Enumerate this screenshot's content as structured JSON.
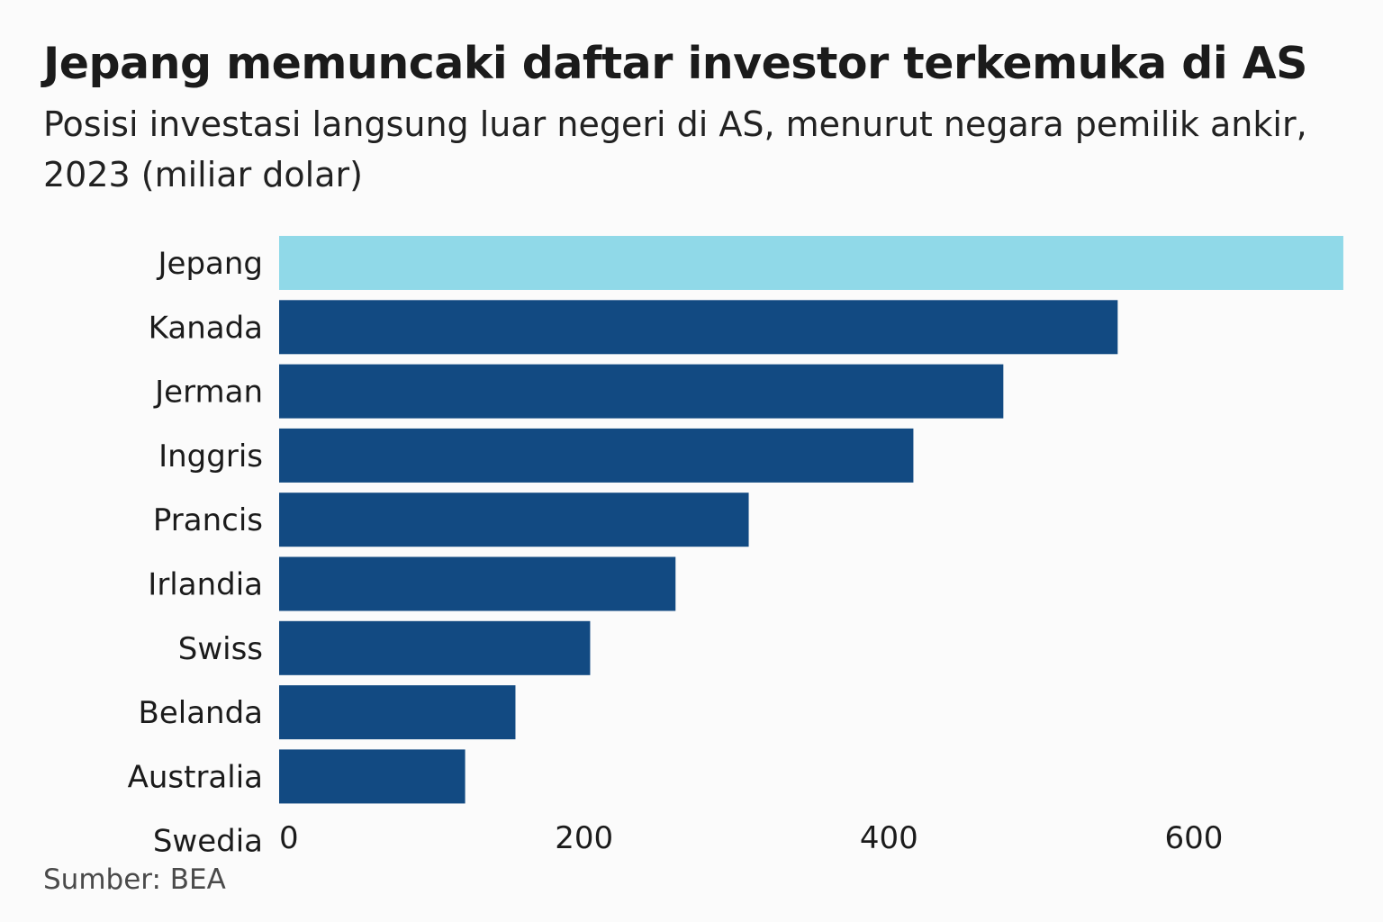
{
  "title": "Jepang memuncaki daftar investor terkemuka di AS",
  "subtitle_line1": "Posisi investasi langsung luar negeri di AS, menurut negara pemilik ankir,",
  "subtitle_line2": "2023 (miliar dolar)",
  "source": "Sumber: BEA",
  "colors": {
    "highlight": "#90d9e8",
    "bar": "#124a82",
    "background": "#fbfbfb"
  },
  "chart_data": {
    "type": "bar",
    "orientation": "horizontal",
    "categories": [
      "Jepang",
      "Kanada",
      "Jerman",
      "Inggris",
      "Prancis",
      "Irlandia",
      "Swiss",
      "Belanda",
      "Australia",
      "Swedia"
    ],
    "values": [
      698,
      550,
      475,
      416,
      308,
      260,
      204,
      155,
      122,
      null
    ],
    "highlight_category": "Jepang",
    "xlim": [
      0,
      700
    ],
    "x_ticks": [
      0,
      200,
      400,
      600
    ],
    "grid": false,
    "legend": "none"
  }
}
